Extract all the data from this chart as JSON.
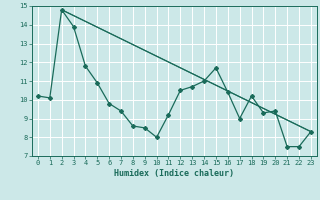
{
  "xlabel": "Humidex (Indice chaleur)",
  "xlim": [
    -0.5,
    23.5
  ],
  "ylim": [
    7,
    15
  ],
  "xticks": [
    0,
    1,
    2,
    3,
    4,
    5,
    6,
    7,
    8,
    9,
    10,
    11,
    12,
    13,
    14,
    15,
    16,
    17,
    18,
    19,
    20,
    21,
    22,
    23
  ],
  "yticks": [
    7,
    8,
    9,
    10,
    11,
    12,
    13,
    14,
    15
  ],
  "bg_color": "#cce8e8",
  "line_color": "#1a6b5a",
  "grid_color": "#ffffff",
  "line1_x": [
    0,
    1,
    2,
    3,
    4,
    5,
    6,
    7,
    8,
    9,
    10,
    11,
    12,
    13,
    14,
    15,
    16,
    17,
    18,
    19,
    20,
    21,
    22,
    23
  ],
  "line1_y": [
    10.2,
    10.1,
    14.8,
    13.9,
    11.8,
    10.9,
    9.8,
    9.4,
    8.6,
    8.5,
    8.0,
    9.2,
    10.5,
    10.7,
    11.0,
    11.7,
    10.4,
    9.0,
    10.2,
    9.3,
    9.4,
    7.5,
    7.5,
    8.3
  ],
  "line2_x": [
    2,
    23
  ],
  "line2_y": [
    14.8,
    8.3
  ],
  "line3_x": [
    2,
    23
  ],
  "line3_y": [
    14.8,
    8.3
  ],
  "line4_x": [
    2,
    23
  ],
  "line4_y": [
    14.8,
    8.3
  ]
}
